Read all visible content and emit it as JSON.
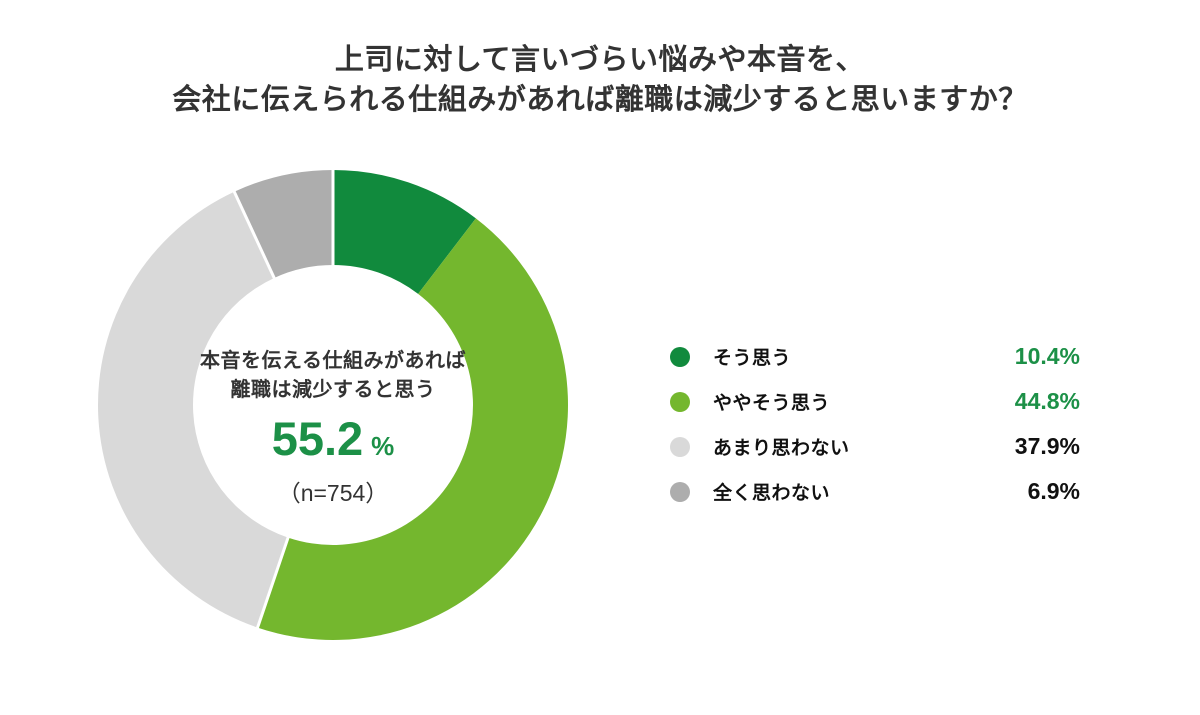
{
  "title": {
    "line1": "上司に対して言いづらい悩みや本音を、",
    "line2": "会社に伝えられる仕組みがあれば離職は減少すると思いますか？"
  },
  "donut_center": {
    "label_line1": "本音を伝える仕組みがあれば",
    "label_line2": "離職は減少すると思う",
    "value": "55.2",
    "unit": "%",
    "sample": "（n=754）"
  },
  "colors": {
    "accent_green_text": "#1c9047",
    "text_dark": "#333333",
    "legend_text": "#111111",
    "separator_white": "#ffffff"
  },
  "chart_data": {
    "type": "pie",
    "variant": "donut",
    "title": "上司に対して言いづらい悩みや本音を、会社に伝えられる仕組みがあれば離職は減少すると思いますか？",
    "sample_size": 754,
    "start_angle": "12-oclock",
    "direction": "clockwise",
    "categories": [
      "そう思う",
      "ややそう思う",
      "あまり思わない",
      "全く思わない"
    ],
    "values": [
      10.4,
      44.8,
      37.9,
      6.9
    ],
    "colors": [
      "#118a3d",
      "#74b72e",
      "#d9d9d9",
      "#adadad"
    ],
    "value_text_colors": [
      "#1c9047",
      "#1c9047",
      "#111111",
      "#111111"
    ],
    "separator_cumulative_pcts": [
      0,
      55.2,
      93.1
    ],
    "inner_radius_ratio": 0.596,
    "center_total_label": "55.2 %",
    "center_total_note": "本音を伝える仕組みがあれば離職は減少すると思う",
    "legend_position": "right"
  }
}
